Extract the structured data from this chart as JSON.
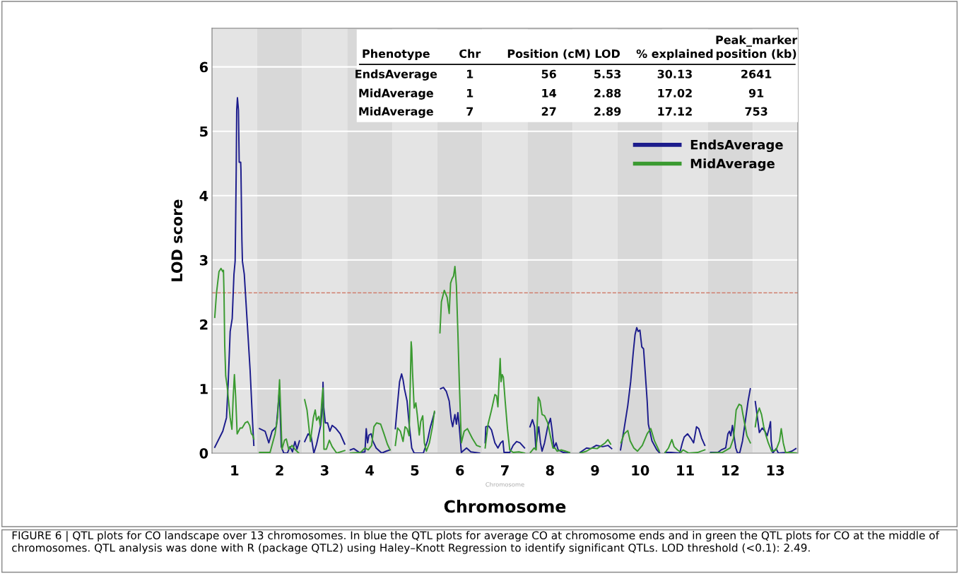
{
  "chart_data": {
    "type": "line",
    "xlabel": "Chromosome",
    "ylabel": "LOD score",
    "xlim": [
      0.5,
      13.5
    ],
    "ylim": [
      0,
      6.6
    ],
    "yticks": [
      0,
      1,
      2,
      3,
      4,
      5,
      6
    ],
    "xticks": [
      1,
      2,
      3,
      4,
      5,
      6,
      7,
      8,
      9,
      10,
      11,
      12,
      13
    ],
    "grid": "y",
    "legend": "top right",
    "line_style": "solid",
    "marker": "none",
    "bands": [
      {
        "axis": "x",
        "from": 0.5,
        "to": 1.5,
        "color": "#e4e4e4"
      },
      {
        "axis": "x",
        "from": 1.5,
        "to": 2.5,
        "color": "#d8d8d8"
      },
      {
        "axis": "x",
        "from": 2.5,
        "to": 3.5,
        "color": "#e4e4e4"
      },
      {
        "axis": "x",
        "from": 3.5,
        "to": 4.5,
        "color": "#d8d8d8"
      },
      {
        "axis": "x",
        "from": 4.5,
        "to": 5.5,
        "color": "#e4e4e4"
      },
      {
        "axis": "x",
        "from": 5.5,
        "to": 6.5,
        "color": "#d8d8d8"
      },
      {
        "axis": "x",
        "from": 6.5,
        "to": 7.5,
        "color": "#e4e4e4"
      },
      {
        "axis": "x",
        "from": 7.5,
        "to": 8.5,
        "color": "#d8d8d8"
      },
      {
        "axis": "x",
        "from": 8.5,
        "to": 9.5,
        "color": "#e4e4e4"
      },
      {
        "axis": "x",
        "from": 9.5,
        "to": 10.5,
        "color": "#d8d8d8"
      },
      {
        "axis": "x",
        "from": 10.5,
        "to": 11.5,
        "color": "#e4e4e4"
      },
      {
        "axis": "x",
        "from": 11.5,
        "to": 12.5,
        "color": "#d8d8d8"
      },
      {
        "axis": "x",
        "from": 12.5,
        "to": 13.5,
        "color": "#e4e4e4"
      }
    ],
    "ref_lines": [
      {
        "axis": "y",
        "value": 2.49,
        "color": "#d08070",
        "line_style": "dashed"
      }
    ],
    "series": [
      {
        "name": "EndsAverage",
        "color": "#1c1c8c",
        "x": [
          0.561,
          0.739,
          0.821,
          0.858,
          0.903,
          0.948,
          0.987,
          1.013,
          1.025,
          1.037,
          1.048,
          1.064,
          1.087,
          1.103,
          1.136,
          1.142,
          1.163,
          1.175,
          1.216,
          1.276,
          1.346,
          1.401,
          1.428,
          1.5,
          1.555,
          1.678,
          1.76,
          1.833,
          1.927,
          1.964,
          1.987,
          2.009,
          2.037,
          2.093,
          2.172,
          2.231,
          2.285,
          2.34,
          2.385,
          2.44,
          2.5,
          2.556,
          2.633,
          2.699,
          2.76,
          2.821,
          2.911,
          2.952,
          2.963,
          2.979,
          3.014,
          3.064,
          3.115,
          3.166,
          3.24,
          3.344,
          3.445,
          3.5,
          3.57,
          3.645,
          3.769,
          3.893,
          3.922,
          3.952,
          3.982,
          4.033,
          4.067,
          4.142,
          4.266,
          4.366,
          4.451,
          4.5,
          4.568,
          4.604,
          4.662,
          4.707,
          4.739,
          4.77,
          4.828,
          4.874,
          4.932,
          4.986,
          5.189,
          5.28,
          5.347,
          5.436,
          5.5,
          5.571,
          5.635,
          5.698,
          5.763,
          5.808,
          5.84,
          5.89,
          5.923,
          5.956,
          5.987,
          6.033,
          6.148,
          6.244,
          6.437,
          6.5,
          6.561,
          6.576,
          6.641,
          6.702,
          6.777,
          6.844,
          6.905,
          6.955,
          6.98,
          7.106,
          7.182,
          7.258,
          7.333,
          7.435,
          7.5,
          7.556,
          7.611,
          7.657,
          7.685,
          7.718,
          7.75,
          7.788,
          7.824,
          7.879,
          7.949,
          8.01,
          8.042,
          8.088,
          8.135,
          8.181,
          8.296,
          8.435,
          8.5,
          8.668,
          8.811,
          8.904,
          9.025,
          9.168,
          9.286,
          9.368,
          9.5,
          9.565,
          9.645,
          9.726,
          9.79,
          9.844,
          9.887,
          9.924,
          9.956,
          9.995,
          10.037,
          10.076,
          10.113,
          10.156,
          10.182,
          10.263,
          10.371,
          10.435,
          10.5,
          10.555,
          10.679,
          10.878,
          10.937,
          10.978,
          11.052,
          11.127,
          11.187,
          11.251,
          11.301,
          11.366,
          11.436,
          11.5,
          11.564,
          11.724,
          11.799,
          11.899,
          11.948,
          11.982,
          12.012,
          12.048,
          12.082,
          12.122,
          12.161,
          12.212,
          12.272,
          12.346,
          12.396,
          12.445,
          12.5,
          12.555,
          12.594,
          12.645,
          12.709,
          12.769,
          12.818,
          12.869,
          12.893,
          12.907,
          12.943,
          13.018,
          13.067,
          13.266,
          13.366,
          13.455
        ],
        "values": [
          0.09,
          0.34,
          0.55,
          1.07,
          1.89,
          2.09,
          2.78,
          2.98,
          3.63,
          4.4,
          5.33,
          5.52,
          5.33,
          4.52,
          4.52,
          4.4,
          3.31,
          2.98,
          2.78,
          2.09,
          1.28,
          0.47,
          0.12,
          null,
          0.38,
          0.34,
          0.16,
          0.34,
          0.41,
          0.71,
          0.91,
          0.71,
          0.1,
          0,
          0,
          0.1,
          0.02,
          0.18,
          0.06,
          0.19,
          null,
          0.18,
          0.3,
          0.26,
          0,
          0.14,
          0.43,
          0.71,
          1.1,
          0.71,
          0.47,
          0.47,
          0.34,
          0.43,
          0.39,
          0.3,
          0.14,
          null,
          0.05,
          0.07,
          0.01,
          0.02,
          0.38,
          0.16,
          0.28,
          0.3,
          0.19,
          0.08,
          0,
          0.03,
          0.05,
          null,
          0.38,
          0.67,
          1.11,
          1.23,
          1.14,
          1.0,
          0.81,
          0.45,
          0.08,
          0,
          0,
          0.19,
          0.41,
          0.63,
          null,
          1.0,
          1.02,
          0.96,
          0.81,
          0.52,
          0.41,
          0.6,
          0.45,
          0.63,
          0.41,
          0.01,
          0.08,
          0.02,
          0,
          null,
          0.16,
          0.41,
          0.42,
          0.36,
          0.16,
          0.08,
          0.16,
          0.19,
          0.01,
          0.01,
          0.12,
          0.18,
          0.16,
          0.08,
          null,
          0.41,
          0.52,
          0.41,
          0.08,
          0.27,
          0.41,
          0.16,
          0.03,
          0.16,
          0.41,
          0.54,
          0.38,
          0.08,
          0.16,
          0.05,
          0.01,
          0,
          null,
          0.01,
          0.08,
          0.07,
          0.12,
          0.1,
          0.12,
          0.07,
          null,
          0.05,
          0.38,
          0.74,
          1.11,
          1.54,
          1.84,
          1.95,
          1.89,
          1.91,
          1.65,
          1.62,
          1.25,
          0.81,
          0.45,
          0.19,
          0.05,
          0,
          null,
          0.01,
          0.01,
          0,
          0.16,
          0.25,
          0.3,
          0.23,
          0.16,
          0.41,
          0.38,
          0.23,
          0.12,
          null,
          0.01,
          0.01,
          0.05,
          0.08,
          0.3,
          0.34,
          0.27,
          0.43,
          0.27,
          0.08,
          0,
          0.01,
          0.19,
          0.56,
          0.81,
          1.0,
          null,
          0.8,
          0.6,
          0.32,
          0.39,
          0.34,
          0.27,
          0.41,
          0.49,
          0.19,
          0,
          0.07,
          0,
          0.01,
          0.03,
          0.07
        ]
      },
      {
        "name": "MidAverage",
        "color": "#3a9a30",
        "x": [
          0.561,
          0.6,
          0.655,
          0.699,
          0.739,
          0.754,
          0.766,
          0.782,
          0.804,
          0.837,
          0.903,
          0.942,
          0.97,
          0.997,
          1.025,
          1.058,
          1.125,
          1.169,
          1.236,
          1.291,
          1.336,
          1.373,
          1.401,
          1.428,
          1.5,
          1.555,
          1.788,
          1.899,
          1.954,
          1.999,
          2.021,
          2.052,
          2.109,
          2.148,
          2.201,
          2.276,
          2.34,
          2.424,
          2.5,
          2.556,
          2.608,
          2.684,
          2.749,
          2.79,
          2.821,
          2.871,
          2.901,
          2.938,
          2.963,
          2.984,
          3.038,
          3.104,
          3.166,
          3.267,
          3.445,
          3.5,
          3.57,
          3.794,
          3.893,
          3.967,
          4.042,
          4.093,
          4.152,
          4.242,
          4.316,
          4.391,
          4.451,
          4.5,
          4.568,
          4.618,
          4.68,
          4.739,
          4.784,
          4.828,
          4.874,
          4.896,
          4.919,
          4.932,
          4.95,
          4.986,
          5.023,
          5.054,
          5.099,
          5.131,
          5.176,
          5.212,
          5.257,
          5.324,
          5.392,
          5.436,
          5.5,
          5.558,
          5.59,
          5.654,
          5.717,
          5.763,
          5.794,
          5.827,
          5.86,
          5.89,
          5.923,
          5.956,
          5.987,
          6.033,
          6.096,
          6.167,
          6.275,
          6.371,
          6.448,
          6.5,
          6.561,
          6.626,
          6.702,
          6.777,
          6.814,
          6.844,
          6.864,
          6.894,
          6.914,
          6.939,
          6.965,
          7.005,
          7.056,
          7.106,
          7.182,
          7.308,
          7.435,
          7.5,
          7.565,
          7.649,
          7.694,
          7.74,
          7.778,
          7.824,
          7.879,
          7.949,
          8.018,
          8.065,
          8.111,
          8.157,
          8.25,
          8.343,
          8.435,
          8.5,
          8.668,
          8.811,
          8.929,
          9.046,
          9.225,
          9.286,
          9.346,
          9.5,
          9.576,
          9.645,
          9.726,
          9.779,
          9.86,
          9.94,
          10.048,
          10.156,
          10.237,
          10.318,
          10.424,
          10.5,
          10.555,
          10.63,
          10.704,
          10.754,
          10.828,
          10.903,
          10.952,
          11.078,
          11.276,
          11.436,
          11.5,
          11.564,
          11.824,
          11.997,
          12.072,
          12.131,
          12.197,
          12.246,
          12.281,
          12.321,
          12.37,
          12.445,
          12.5,
          12.555,
          12.594,
          12.645,
          12.694,
          12.743,
          12.794,
          12.843,
          12.918,
          13.018,
          13.093,
          13.131,
          13.176,
          13.227,
          13.316,
          13.466
        ],
        "values": [
          2.11,
          2.49,
          2.82,
          2.87,
          2.82,
          2.84,
          2.49,
          1.68,
          1.2,
          1.03,
          0.55,
          0.37,
          0.87,
          1.22,
          0.87,
          0.3,
          0.39,
          0.39,
          0.47,
          0.49,
          0.43,
          0.3,
          0.28,
          0.22,
          null,
          0.01,
          0.01,
          0.3,
          0.55,
          1.14,
          0.71,
          0.06,
          0.2,
          0.22,
          0.06,
          0.12,
          0.06,
          0,
          null,
          0.83,
          0.67,
          0.18,
          0.55,
          0.67,
          0.51,
          0.57,
          0.43,
          0.83,
          1.01,
          0.06,
          0.06,
          0.2,
          0.1,
          0,
          0.04,
          null,
          0,
          0.01,
          0.08,
          0.05,
          0.12,
          0.41,
          0.47,
          0.45,
          0.3,
          0.14,
          0.05,
          null,
          0.12,
          0.39,
          0.34,
          0.18,
          0.41,
          0.38,
          0.27,
          0.96,
          1.73,
          1.62,
          1.25,
          0.7,
          0.78,
          0.6,
          0.28,
          0.49,
          0.58,
          0.16,
          0.03,
          0.16,
          0.41,
          0.65,
          null,
          1.87,
          2.35,
          2.53,
          2.42,
          2.17,
          2.64,
          2.71,
          2.75,
          2.9,
          2.6,
          1.87,
          1.11,
          0.16,
          0.34,
          0.38,
          0.23,
          0.12,
          0.1,
          null,
          0.08,
          0.45,
          0.67,
          0.91,
          0.89,
          0.72,
          1.04,
          1.47,
          1.11,
          1.22,
          1.18,
          0.81,
          0.38,
          0.05,
          0.01,
          0.02,
          0,
          null,
          0.01,
          0.08,
          0.05,
          0.87,
          0.81,
          0.6,
          0.58,
          0.47,
          0.23,
          0.08,
          0.08,
          0.03,
          0.05,
          0.03,
          0.01,
          null,
          0,
          0.03,
          0.08,
          0.07,
          0.16,
          0.21,
          0.14,
          null,
          0.16,
          0.3,
          0.35,
          0.19,
          0.08,
          0.03,
          0.12,
          0.3,
          0.38,
          0.19,
          0.03,
          null,
          0.01,
          0.08,
          0.21,
          0.1,
          0.05,
          0.01,
          0.05,
          0,
          0.01,
          0.05,
          null,
          0,
          0.01,
          0.08,
          0.23,
          0.67,
          0.76,
          0.74,
          0.6,
          0.45,
          0.27,
          0.16,
          null,
          0.41,
          0.6,
          0.7,
          0.6,
          0.41,
          0.27,
          0.16,
          0.03,
          0.05,
          0.19,
          0.38,
          0.16,
          0.01,
          0.01,
          0
        ]
      }
    ],
    "annotations": [
      "FIGURE 6 | QTL plots for CO landscape over 13 chromosomes. In blue the QTL plots for average CO at chromosome ends and in green the QTL plots for CO at the middle of chromosomes. QTL analysis was done with R (package QTL2) using Haley–Knott Regression to identify significant QTLs. LOD threshold (<0.1): 2.49.",
      "Chromosome",
      "Phenotype",
      "Chr",
      "Position (cM)",
      "LOD",
      "% explained",
      "Peak_marker\nposition (kb)",
      "EndsAverage",
      "1",
      "56",
      "5.53",
      "30.13",
      "2641",
      "MidAverage",
      "1",
      "14",
      "2.88",
      "17.02",
      "91",
      "MidAverage",
      "7",
      "27",
      "2.89",
      "17.12",
      "753"
    ]
  }
}
